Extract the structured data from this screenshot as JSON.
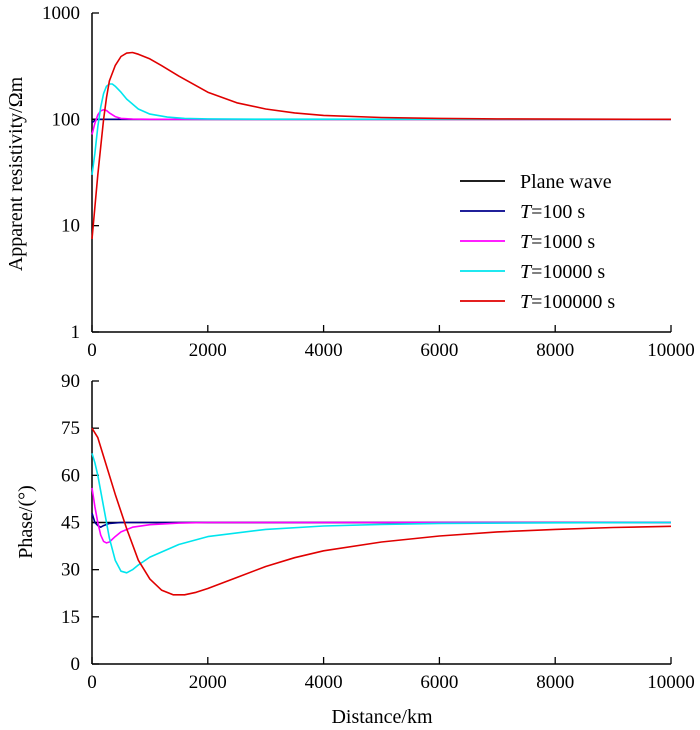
{
  "chart_data": [
    {
      "type": "line",
      "panel": "top",
      "yscale": "log",
      "ylabel": "Apparent resistivity/Ωm",
      "xlabel": "",
      "xlim": [
        0,
        10000
      ],
      "ylim": [
        1,
        1000
      ],
      "x_ticks": [
        "0",
        "2000",
        "4000",
        "6000",
        "8000",
        "10000"
      ],
      "y_ticks": [
        "1",
        "10",
        "100",
        "1000"
      ],
      "series": [
        {
          "name": "Plane wave",
          "color": "#000000",
          "points": [
            [
              0,
              100
            ],
            [
              10000,
              100
            ]
          ]
        },
        {
          "name": "T=100 s",
          "color": "#00008B",
          "points": [
            [
              0,
              93
            ],
            [
              50,
              98
            ],
            [
              100,
              100
            ],
            [
              200,
              100
            ],
            [
              10000,
              100
            ]
          ]
        },
        {
          "name": "T=1000 s",
          "color": "#FF00FF",
          "points": [
            [
              0,
              72
            ],
            [
              50,
              92
            ],
            [
              100,
              110
            ],
            [
              150,
              120
            ],
            [
              200,
              123
            ],
            [
              250,
              121
            ],
            [
              300,
              115
            ],
            [
              400,
              106
            ],
            [
              500,
              102
            ],
            [
              700,
              100.5
            ],
            [
              1000,
              100
            ],
            [
              10000,
              100
            ]
          ]
        },
        {
          "name": "T=10000 s",
          "color": "#00E5EE",
          "points": [
            [
              0,
              30
            ],
            [
              50,
              48
            ],
            [
              100,
              85
            ],
            [
              150,
              130
            ],
            [
              200,
              175
            ],
            [
              250,
              205
            ],
            [
              300,
              215
            ],
            [
              350,
              215
            ],
            [
              400,
              205
            ],
            [
              500,
              180
            ],
            [
              600,
              155
            ],
            [
              800,
              125
            ],
            [
              1000,
              112
            ],
            [
              1300,
              105
            ],
            [
              1600,
              102
            ],
            [
              2000,
              101
            ],
            [
              3000,
              100.3
            ],
            [
              10000,
              100
            ]
          ]
        },
        {
          "name": "T=100000 s",
          "color": "#E00000",
          "points": [
            [
              0,
              7.5
            ],
            [
              50,
              15
            ],
            [
              100,
              30
            ],
            [
              150,
              55
            ],
            [
              200,
              100
            ],
            [
              250,
              160
            ],
            [
              300,
              230
            ],
            [
              400,
              320
            ],
            [
              500,
              390
            ],
            [
              600,
              420
            ],
            [
              700,
              425
            ],
            [
              800,
              410
            ],
            [
              1000,
              370
            ],
            [
              1200,
              320
            ],
            [
              1500,
              255
            ],
            [
              2000,
              180
            ],
            [
              2500,
              143
            ],
            [
              3000,
              125
            ],
            [
              3500,
              115
            ],
            [
              4000,
              109
            ],
            [
              5000,
              104
            ],
            [
              6000,
              102
            ],
            [
              7000,
              101
            ],
            [
              8000,
              100.5
            ],
            [
              10000,
              100
            ]
          ]
        }
      ]
    },
    {
      "type": "line",
      "panel": "bottom",
      "ylabel": "Phase/(°)",
      "xlabel": "Distance/km",
      "xlim": [
        0,
        10000
      ],
      "ylim": [
        0,
        90
      ],
      "x_ticks": [
        "0",
        "2000",
        "4000",
        "6000",
        "8000",
        "10000"
      ],
      "y_ticks": [
        "0",
        "15",
        "30",
        "45",
        "60",
        "75",
        "90"
      ],
      "series": [
        {
          "name": "Plane wave",
          "color": "#000000",
          "points": [
            [
              0,
              45
            ],
            [
              10000,
              45
            ]
          ]
        },
        {
          "name": "T=100 s",
          "color": "#00008B",
          "points": [
            [
              0,
              48
            ],
            [
              50,
              45
            ],
            [
              100,
              44
            ],
            [
              150,
              43.5
            ],
            [
              200,
              44
            ],
            [
              300,
              44.7
            ],
            [
              500,
              45
            ],
            [
              10000,
              45
            ]
          ]
        },
        {
          "name": "T=1000 s",
          "color": "#FF00FF",
          "points": [
            [
              0,
              56
            ],
            [
              50,
              50
            ],
            [
              100,
              45
            ],
            [
              150,
              41
            ],
            [
              200,
              39
            ],
            [
              250,
              38.5
            ],
            [
              300,
              38.8
            ],
            [
              400,
              40.5
            ],
            [
              500,
              42
            ],
            [
              700,
              43.5
            ],
            [
              1000,
              44.3
            ],
            [
              1500,
              44.8
            ],
            [
              2000,
              45
            ],
            [
              10000,
              45
            ]
          ]
        },
        {
          "name": "T=10000 s",
          "color": "#00E5EE",
          "points": [
            [
              0,
              67
            ],
            [
              50,
              64
            ],
            [
              100,
              60
            ],
            [
              200,
              50
            ],
            [
              300,
              40
            ],
            [
              400,
              33
            ],
            [
              500,
              29.5
            ],
            [
              600,
              29
            ],
            [
              700,
              30
            ],
            [
              800,
              31.5
            ],
            [
              1000,
              34
            ],
            [
              1500,
              38
            ],
            [
              2000,
              40.5
            ],
            [
              3000,
              42.8
            ],
            [
              4000,
              43.9
            ],
            [
              5000,
              44.4
            ],
            [
              6000,
              44.7
            ],
            [
              8000,
              44.9
            ],
            [
              10000,
              45
            ]
          ]
        },
        {
          "name": "T=100000 s",
          "color": "#E00000",
          "points": [
            [
              0,
              75
            ],
            [
              100,
              72
            ],
            [
              200,
              66
            ],
            [
              400,
              54
            ],
            [
              600,
              43
            ],
            [
              800,
              33
            ],
            [
              1000,
              27
            ],
            [
              1200,
              23.5
            ],
            [
              1400,
              22
            ],
            [
              1600,
              22
            ],
            [
              1800,
              22.8
            ],
            [
              2000,
              24
            ],
            [
              2500,
              27.5
            ],
            [
              3000,
              31
            ],
            [
              3500,
              33.8
            ],
            [
              4000,
              36
            ],
            [
              5000,
              38.8
            ],
            [
              6000,
              40.7
            ],
            [
              7000,
              42
            ],
            [
              8000,
              42.8
            ],
            [
              9000,
              43.4
            ],
            [
              10000,
              43.8
            ]
          ]
        }
      ]
    }
  ],
  "legend": {
    "placement": "right-middle of top panel",
    "entries": [
      {
        "color": "#000000",
        "italic": "",
        "text": "Plane wave"
      },
      {
        "color": "#00008B",
        "italic": "T",
        "text": "=100 s"
      },
      {
        "color": "#FF00FF",
        "italic": "T",
        "text": "=1000 s"
      },
      {
        "color": "#00E5EE",
        "italic": "T",
        "text": "=10000 s"
      },
      {
        "color": "#E00000",
        "italic": "T",
        "text": "=100000 s"
      }
    ]
  }
}
